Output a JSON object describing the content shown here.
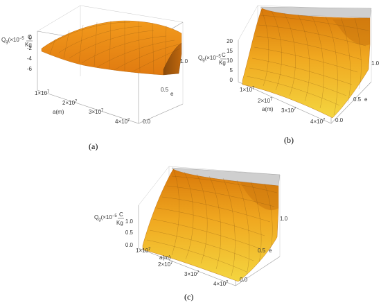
{
  "colors": {
    "surface_low": "#f2d23a",
    "surface_high": "#e88a0c",
    "surface_dark": "#b35f08",
    "cap": "#cfcfcf",
    "mesh": "#7a4a10"
  },
  "chart_data": [
    {
      "type": "surface3d",
      "panel_label": "(a)",
      "zlabel": "Q_g(×10^-5 C/Kg)",
      "xlabel": "a(m)",
      "ylabel": "e",
      "x_ticks": [
        "1×10^7",
        "2×10^7",
        "3×10^7",
        "4×10^7"
      ],
      "y_ticks": [
        "0.0",
        "0.5",
        "1.0"
      ],
      "z_ticks": [
        "0",
        "-2",
        "-4",
        "-6"
      ],
      "xlim": [
        0,
        45000000
      ],
      "ylim": [
        0,
        1.0
      ],
      "zlim": [
        -7,
        0.5
      ],
      "description_points": {
        "surface": "negative dome, near 0 at all a, falling toward -6 at small a and high e"
      }
    },
    {
      "type": "surface3d",
      "panel_label": "(b)",
      "zlabel": "Q_g(×10^-5 C/Kg)",
      "xlabel": "a(m)",
      "ylabel": "e",
      "x_ticks": [
        "1×10^7",
        "2×10^7",
        "3×10^7",
        "4×10^7"
      ],
      "y_ticks": [
        "0.0",
        "0.5",
        "1.0"
      ],
      "z_ticks": [
        "0",
        "5",
        "10",
        "15",
        "20"
      ],
      "xlim": [
        0,
        45000000
      ],
      "ylim": [
        0,
        1.0
      ],
      "zlim": [
        0,
        20
      ]
    },
    {
      "type": "surface3d",
      "panel_label": "(c)",
      "zlabel": "Q_g(×10^-5 C/Kg)",
      "xlabel": "a(m)",
      "ylabel": "e",
      "x_ticks": [
        "1×10^7",
        "2×10^7",
        "3×10^7",
        "4×10^7"
      ],
      "y_ticks": [
        "0.0",
        "0.5",
        "1.0"
      ],
      "z_ticks": [
        "0.0",
        "0.5",
        "1.0"
      ],
      "xlim": [
        0,
        45000000
      ],
      "ylim": [
        0,
        1.0
      ],
      "zlim": [
        0,
        1.0
      ]
    }
  ]
}
